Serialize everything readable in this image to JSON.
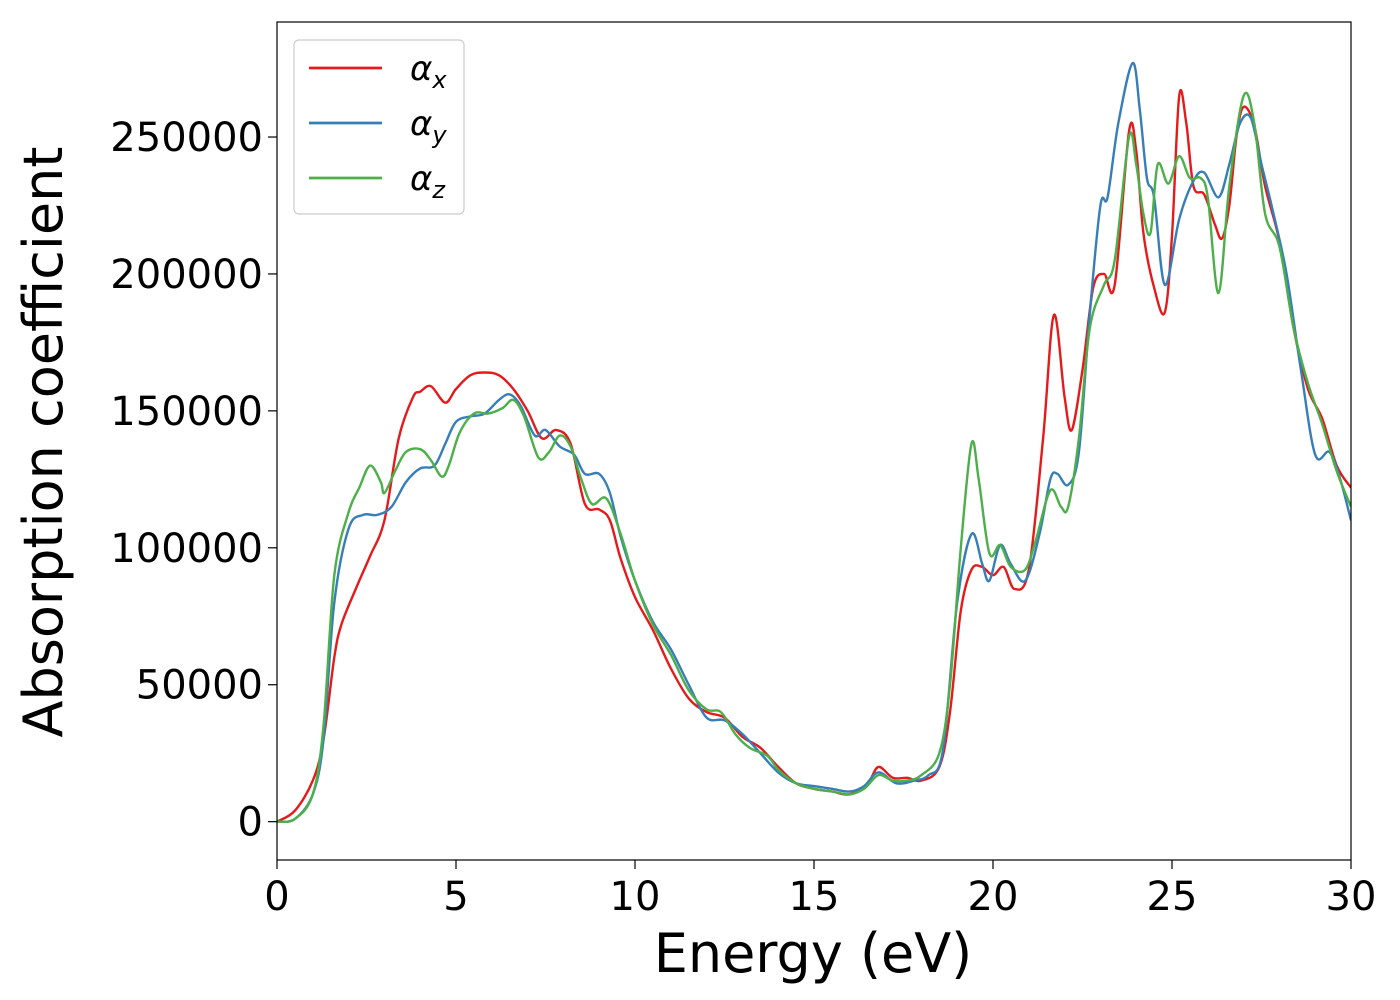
{
  "chart_data": {
    "type": "line",
    "title": "",
    "xlabel": "Energy (eV)",
    "ylabel": "Absorption coefficient",
    "xlim": [
      0,
      30
    ],
    "ylim": [
      -14000,
      292000
    ],
    "xticks": [
      0,
      5,
      10,
      15,
      20,
      25,
      30
    ],
    "yticks": [
      0,
      50000,
      100000,
      150000,
      200000,
      250000
    ],
    "grid": false,
    "legend_position": "top-left",
    "series": [
      {
        "name": "α",
        "subscript": "x",
        "color": "#e41a1c",
        "points": [
          [
            0,
            0
          ],
          [
            0.5,
            4000
          ],
          [
            1.0,
            15000
          ],
          [
            1.3,
            30000
          ],
          [
            1.6,
            60000
          ],
          [
            1.8,
            72000
          ],
          [
            2.2,
            85000
          ],
          [
            2.6,
            97000
          ],
          [
            3.0,
            110000
          ],
          [
            3.4,
            140000
          ],
          [
            3.8,
            155000
          ],
          [
            4.0,
            157000
          ],
          [
            4.3,
            159000
          ],
          [
            4.7,
            153000
          ],
          [
            5.0,
            158000
          ],
          [
            5.4,
            163000
          ],
          [
            5.8,
            164000
          ],
          [
            6.2,
            163000
          ],
          [
            6.6,
            158000
          ],
          [
            7.0,
            150000
          ],
          [
            7.4,
            140000
          ],
          [
            7.8,
            143000
          ],
          [
            8.2,
            138000
          ],
          [
            8.6,
            116000
          ],
          [
            9.0,
            114000
          ],
          [
            9.3,
            110000
          ],
          [
            9.6,
            96000
          ],
          [
            10.0,
            82000
          ],
          [
            10.5,
            70000
          ],
          [
            11.0,
            56000
          ],
          [
            11.5,
            45000
          ],
          [
            12.0,
            40000
          ],
          [
            12.5,
            38000
          ],
          [
            13.0,
            31000
          ],
          [
            13.5,
            27000
          ],
          [
            14.0,
            20000
          ],
          [
            14.5,
            14000
          ],
          [
            15.0,
            12000
          ],
          [
            15.5,
            11000
          ],
          [
            16.0,
            10000
          ],
          [
            16.5,
            14000
          ],
          [
            16.8,
            20000
          ],
          [
            17.2,
            16000
          ],
          [
            17.6,
            16000
          ],
          [
            18.0,
            15000
          ],
          [
            18.5,
            20000
          ],
          [
            18.8,
            40000
          ],
          [
            19.1,
            77000
          ],
          [
            19.4,
            92000
          ],
          [
            19.7,
            93000
          ],
          [
            20.0,
            90000
          ],
          [
            20.3,
            93000
          ],
          [
            20.6,
            85000
          ],
          [
            21.0,
            92000
          ],
          [
            21.4,
            140000
          ],
          [
            21.7,
            185000
          ],
          [
            22.0,
            155000
          ],
          [
            22.2,
            143000
          ],
          [
            22.5,
            165000
          ],
          [
            22.8,
            195000
          ],
          [
            23.1,
            200000
          ],
          [
            23.4,
            196000
          ],
          [
            23.8,
            252000
          ],
          [
            24.0,
            245000
          ],
          [
            24.2,
            215000
          ],
          [
            24.5,
            195000
          ],
          [
            24.8,
            186000
          ],
          [
            25.0,
            214000
          ],
          [
            25.2,
            265000
          ],
          [
            25.4,
            255000
          ],
          [
            25.6,
            232000
          ],
          [
            25.9,
            229000
          ],
          [
            26.2,
            218000
          ],
          [
            26.4,
            213000
          ],
          [
            26.6,
            225000
          ],
          [
            26.8,
            250000
          ],
          [
            27.0,
            261000
          ],
          [
            27.3,
            254000
          ],
          [
            27.6,
            232000
          ],
          [
            28.0,
            212000
          ],
          [
            28.4,
            180000
          ],
          [
            28.8,
            158000
          ],
          [
            29.2,
            147000
          ],
          [
            29.6,
            130000
          ],
          [
            30.0,
            122000
          ]
        ]
      },
      {
        "name": "α",
        "subscript": "y",
        "color": "#377eb8",
        "points": [
          [
            0,
            0
          ],
          [
            0.5,
            1000
          ],
          [
            1.0,
            10000
          ],
          [
            1.3,
            30000
          ],
          [
            1.6,
            80000
          ],
          [
            2.0,
            107000
          ],
          [
            2.4,
            112000
          ],
          [
            2.8,
            112000
          ],
          [
            3.2,
            115000
          ],
          [
            3.6,
            124000
          ],
          [
            4.0,
            129000
          ],
          [
            4.4,
            130000
          ],
          [
            4.7,
            138000
          ],
          [
            5.0,
            146000
          ],
          [
            5.4,
            148000
          ],
          [
            5.8,
            149000
          ],
          [
            6.2,
            154000
          ],
          [
            6.5,
            156000
          ],
          [
            6.8,
            152000
          ],
          [
            7.2,
            141000
          ],
          [
            7.5,
            143000
          ],
          [
            7.9,
            137000
          ],
          [
            8.3,
            134000
          ],
          [
            8.6,
            127000
          ],
          [
            9.0,
            127000
          ],
          [
            9.3,
            120000
          ],
          [
            9.6,
            104000
          ],
          [
            10.0,
            88000
          ],
          [
            10.5,
            73000
          ],
          [
            11.0,
            63000
          ],
          [
            11.5,
            50000
          ],
          [
            12.0,
            38000
          ],
          [
            12.5,
            37000
          ],
          [
            13.0,
            32000
          ],
          [
            13.5,
            25000
          ],
          [
            14.0,
            18000
          ],
          [
            14.5,
            14000
          ],
          [
            15.0,
            13000
          ],
          [
            15.5,
            12000
          ],
          [
            16.0,
            11000
          ],
          [
            16.4,
            13000
          ],
          [
            16.8,
            18000
          ],
          [
            17.3,
            14000
          ],
          [
            17.8,
            15000
          ],
          [
            18.2,
            17000
          ],
          [
            18.6,
            26000
          ],
          [
            19.0,
            80000
          ],
          [
            19.4,
            105000
          ],
          [
            19.7,
            94000
          ],
          [
            19.9,
            88000
          ],
          [
            20.2,
            101000
          ],
          [
            20.5,
            94000
          ],
          [
            20.9,
            88000
          ],
          [
            21.3,
            105000
          ],
          [
            21.6,
            125000
          ],
          [
            21.8,
            127000
          ],
          [
            22.1,
            123000
          ],
          [
            22.4,
            135000
          ],
          [
            22.7,
            185000
          ],
          [
            23.0,
            225000
          ],
          [
            23.2,
            228000
          ],
          [
            23.5,
            255000
          ],
          [
            23.9,
            277000
          ],
          [
            24.1,
            260000
          ],
          [
            24.3,
            235000
          ],
          [
            24.5,
            228000
          ],
          [
            24.8,
            196000
          ],
          [
            25.2,
            220000
          ],
          [
            25.6,
            234000
          ],
          [
            25.9,
            237000
          ],
          [
            26.3,
            228000
          ],
          [
            26.6,
            240000
          ],
          [
            26.9,
            255000
          ],
          [
            27.2,
            257000
          ],
          [
            27.5,
            240000
          ],
          [
            27.8,
            224000
          ],
          [
            28.2,
            200000
          ],
          [
            28.6,
            165000
          ],
          [
            29.0,
            134000
          ],
          [
            29.4,
            135000
          ],
          [
            29.7,
            125000
          ],
          [
            30.0,
            110000
          ]
        ]
      },
      {
        "name": "α",
        "subscript": "z",
        "color": "#4daf4a",
        "points": [
          [
            0,
            0
          ],
          [
            0.5,
            1000
          ],
          [
            1.0,
            10000
          ],
          [
            1.3,
            35000
          ],
          [
            1.6,
            90000
          ],
          [
            2.0,
            113000
          ],
          [
            2.3,
            122000
          ],
          [
            2.6,
            130000
          ],
          [
            2.9,
            124000
          ],
          [
            3.0,
            120000
          ],
          [
            3.3,
            128000
          ],
          [
            3.6,
            135000
          ],
          [
            4.0,
            136000
          ],
          [
            4.3,
            132000
          ],
          [
            4.6,
            126000
          ],
          [
            4.8,
            130000
          ],
          [
            5.1,
            142000
          ],
          [
            5.5,
            149000
          ],
          [
            5.9,
            149000
          ],
          [
            6.3,
            151000
          ],
          [
            6.6,
            154000
          ],
          [
            6.9,
            148000
          ],
          [
            7.3,
            133000
          ],
          [
            7.6,
            135000
          ],
          [
            7.9,
            141000
          ],
          [
            8.2,
            137000
          ],
          [
            8.5,
            125000
          ],
          [
            8.8,
            116000
          ],
          [
            9.2,
            118000
          ],
          [
            9.6,
            105000
          ],
          [
            10.0,
            88000
          ],
          [
            10.5,
            72000
          ],
          [
            11.0,
            61000
          ],
          [
            11.5,
            48000
          ],
          [
            12.0,
            41000
          ],
          [
            12.4,
            40000
          ],
          [
            12.8,
            32000
          ],
          [
            13.2,
            27000
          ],
          [
            13.7,
            24000
          ],
          [
            14.0,
            19000
          ],
          [
            14.5,
            14000
          ],
          [
            15.0,
            12000
          ],
          [
            15.5,
            11000
          ],
          [
            16.0,
            10000
          ],
          [
            16.4,
            12000
          ],
          [
            16.8,
            17000
          ],
          [
            17.2,
            15000
          ],
          [
            17.6,
            15000
          ],
          [
            18.0,
            17000
          ],
          [
            18.5,
            25000
          ],
          [
            18.8,
            50000
          ],
          [
            19.1,
            100000
          ],
          [
            19.4,
            138000
          ],
          [
            19.6,
            125000
          ],
          [
            19.9,
            98000
          ],
          [
            20.2,
            101000
          ],
          [
            20.5,
            93000
          ],
          [
            20.9,
            92000
          ],
          [
            21.2,
            103000
          ],
          [
            21.6,
            121000
          ],
          [
            21.9,
            115000
          ],
          [
            22.1,
            115000
          ],
          [
            22.4,
            140000
          ],
          [
            22.7,
            180000
          ],
          [
            23.1,
            196000
          ],
          [
            23.4,
            205000
          ],
          [
            23.8,
            250000
          ],
          [
            24.0,
            240000
          ],
          [
            24.2,
            222000
          ],
          [
            24.4,
            215000
          ],
          [
            24.6,
            240000
          ],
          [
            24.9,
            233000
          ],
          [
            25.2,
            243000
          ],
          [
            25.5,
            235000
          ],
          [
            25.8,
            235000
          ],
          [
            26.0,
            228000
          ],
          [
            26.3,
            193000
          ],
          [
            26.6,
            232000
          ],
          [
            27.0,
            265000
          ],
          [
            27.3,
            255000
          ],
          [
            27.6,
            222000
          ],
          [
            28.0,
            210000
          ],
          [
            28.4,
            180000
          ],
          [
            28.8,
            160000
          ],
          [
            29.2,
            145000
          ],
          [
            29.6,
            128000
          ],
          [
            30.0,
            115000
          ]
        ]
      }
    ]
  }
}
